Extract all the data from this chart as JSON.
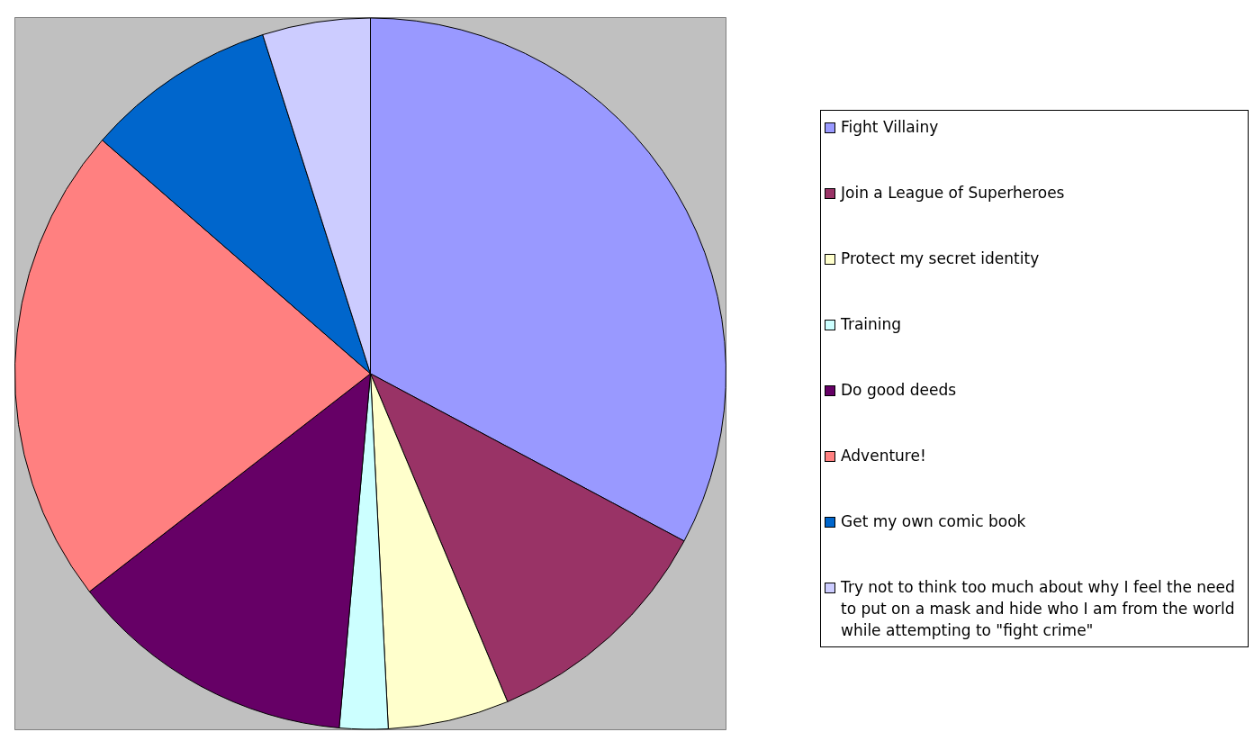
{
  "chart_data": {
    "type": "pie",
    "legend": "right",
    "categories": [
      "Fight Villainy",
      "Join a League of Superheroes",
      "Protect my secret identity",
      "Training",
      "Do good deeds",
      "Adventure!",
      "Get my own comic book",
      "Try not to think too much about why I feel the need to put on a mask and hide who I am from the world while attempting to \"fight crime\""
    ],
    "values": [
      32.8,
      10.9,
      5.5,
      2.2,
      13.1,
      21.9,
      8.7,
      4.9
    ],
    "colors": [
      "#9999ff",
      "#993366",
      "#ffffcc",
      "#ccffff",
      "#660066",
      "#ff8080",
      "#0066cc",
      "#ccccff"
    ]
  }
}
